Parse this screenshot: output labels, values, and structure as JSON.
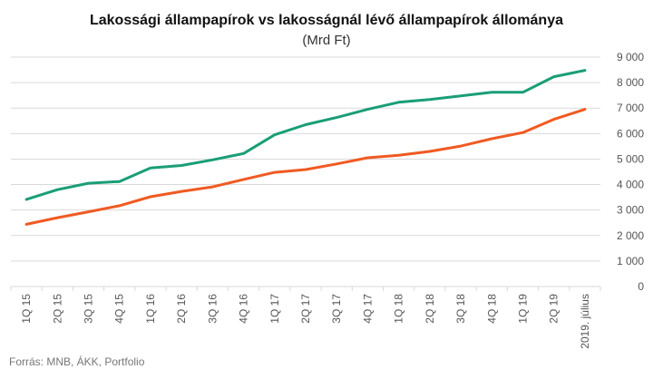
{
  "chart_data": {
    "type": "line",
    "title": "Lakossági állampapírok vs lakosságnál lévő állampapírok  állománya",
    "subtitle": "(Mrd Ft)",
    "categories": [
      "1Q 15",
      "2Q 15",
      "3Q 15",
      "4Q 15",
      "1Q 16",
      "2Q 16",
      "3Q 16",
      "4Q 16",
      "1Q 17",
      "2Q 17",
      "3Q 17",
      "4Q 17",
      "1Q 18",
      "2Q 18",
      "3Q 18",
      "4Q 18",
      "1Q 19",
      "2Q 19",
      "2019. július"
    ],
    "series": [
      {
        "color": "#1a9e77",
        "values": [
          3420,
          3800,
          4050,
          4120,
          4650,
          4750,
          4970,
          5220,
          5950,
          6350,
          6630,
          6950,
          7230,
          7340,
          7480,
          7620,
          7620,
          8230,
          8480
        ]
      },
      {
        "color": "#f05a22",
        "values": [
          2440,
          2700,
          2930,
          3170,
          3520,
          3730,
          3910,
          4200,
          4480,
          4590,
          4810,
          5050,
          5150,
          5300,
          5510,
          5800,
          6040,
          6560,
          6950
        ]
      }
    ],
    "yticks": [
      "0",
      "1 000",
      "2 000",
      "3 000",
      "4 000",
      "5 000",
      "6 000",
      "7 000",
      "8 000",
      "9 000"
    ],
    "ylim": [
      0,
      9000
    ],
    "y_axis_side": "right",
    "grid": true,
    "legend": "none"
  },
  "source": "Forrás: MNB, ÁKK, Portfolio"
}
